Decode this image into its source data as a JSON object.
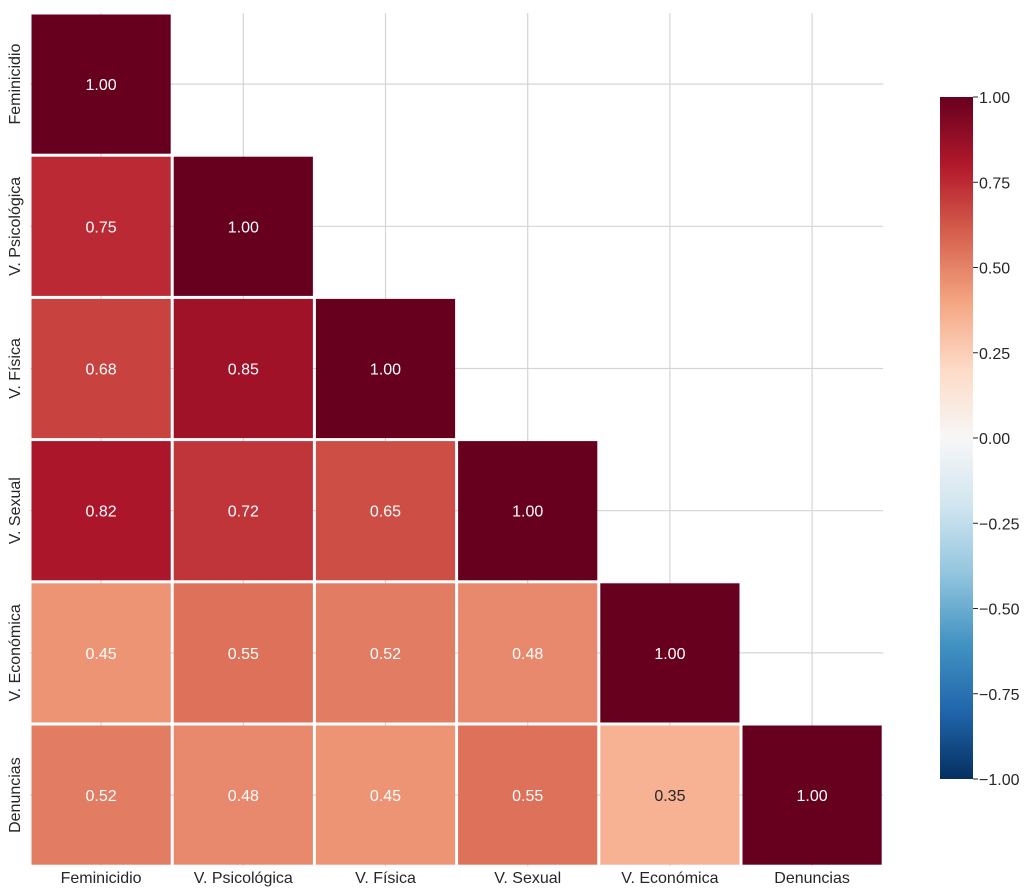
{
  "chart_data": {
    "type": "heatmap",
    "title": "",
    "xlabel": "",
    "ylabel": "",
    "mask": "upper-triangle",
    "grid": true,
    "legend": "colorbar-right",
    "variables": [
      "Feminicidio",
      "V. Psicológica",
      "V. Física",
      "V. Sexual",
      "V. Económica",
      "Denuncias"
    ],
    "matrix": [
      [
        1.0,
        null,
        null,
        null,
        null,
        null
      ],
      [
        0.75,
        1.0,
        null,
        null,
        null,
        null
      ],
      [
        0.68,
        0.85,
        1.0,
        null,
        null,
        null
      ],
      [
        0.82,
        0.72,
        0.65,
        1.0,
        null,
        null
      ],
      [
        0.45,
        0.55,
        0.52,
        0.48,
        1.0,
        null
      ],
      [
        0.52,
        0.48,
        0.45,
        0.55,
        0.35,
        1.0
      ]
    ],
    "value_labels": [
      [
        "1.00"
      ],
      [
        "0.75",
        "1.00"
      ],
      [
        "0.68",
        "0.85",
        "1.00"
      ],
      [
        "0.82",
        "0.72",
        "0.65",
        "1.00"
      ],
      [
        "0.45",
        "0.55",
        "0.52",
        "0.48",
        "1.00"
      ],
      [
        "0.52",
        "0.48",
        "0.45",
        "0.55",
        "0.35",
        "1.00"
      ]
    ],
    "colorscale": "RdBu_r",
    "vmin": -1.0,
    "vmax": 1.0,
    "colorbar_ticks": [
      1.0,
      0.75,
      0.5,
      0.25,
      0.0,
      -0.25,
      -0.5,
      -0.75,
      -1.0
    ],
    "colorbar_tick_labels": [
      "1.00",
      "0.75",
      "0.50",
      "0.25",
      "0.00",
      "−0.25",
      "−0.50",
      "−0.75",
      "−1.00"
    ]
  }
}
